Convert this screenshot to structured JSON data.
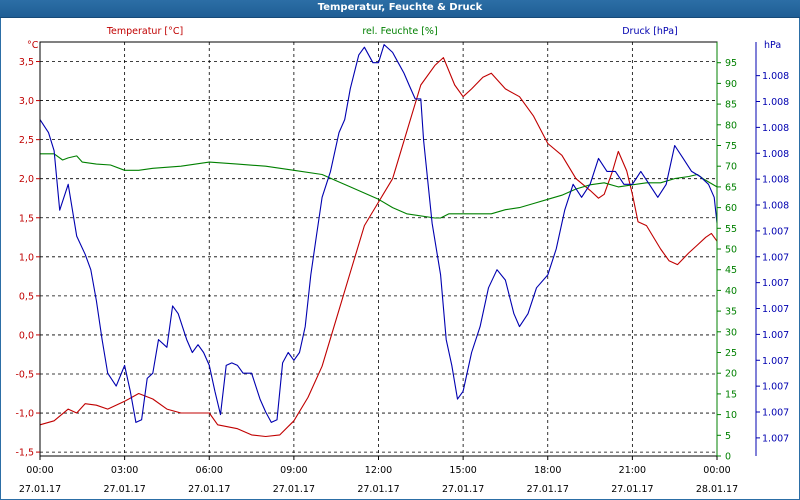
{
  "window": {
    "title": "Temperatur, Feuchte & Druck"
  },
  "chart_data": {
    "type": "line",
    "title": "Temperatur, Feuchte & Druck",
    "grid": true,
    "colors": {
      "temperature": "#c00000",
      "humidity": "#008000",
      "pressure": "#0000b0",
      "grid": "#000000",
      "frame": "#2c6ea6"
    },
    "x_axis": {
      "range_hours": [
        0,
        24
      ],
      "ticks": [
        {
          "time": "00:00",
          "date": "27.01.17"
        },
        {
          "time": "03:00",
          "date": "27.01.17"
        },
        {
          "time": "06:00",
          "date": "27.01.17"
        },
        {
          "time": "09:00",
          "date": "27.01.17"
        },
        {
          "time": "12:00",
          "date": "27.01.17"
        },
        {
          "time": "15:00",
          "date": "27.01.17"
        },
        {
          "time": "18:00",
          "date": "27.01.17"
        },
        {
          "time": "21:00",
          "date": "27.01.17"
        },
        {
          "time": "00:00",
          "date": "28.01.17"
        }
      ]
    },
    "axes": {
      "temperature": {
        "label": "Temperatur [°C]",
        "unit": "°C",
        "range": [
          -1.55,
          3.75
        ],
        "ticks": [
          "3,5",
          "3,0",
          "2,5",
          "2,0",
          "1,5",
          "1,0",
          "0,5",
          "0,0",
          "-0,5",
          "-1,0",
          "-1,5"
        ],
        "tick_values": [
          3.5,
          3.0,
          2.5,
          2.0,
          1.5,
          1.0,
          0.5,
          0.0,
          -0.5,
          -1.0,
          -1.5
        ]
      },
      "humidity": {
        "label": "rel. Feuchte [%]",
        "unit": "%",
        "range": [
          0,
          100
        ],
        "ticks": [
          "95",
          "90",
          "85",
          "80",
          "75",
          "70",
          "65",
          "60",
          "55",
          "50",
          "45",
          "40",
          "35",
          "30",
          "25",
          "20",
          "15",
          "10",
          "5",
          "0"
        ],
        "tick_values": [
          95,
          90,
          85,
          80,
          75,
          70,
          65,
          60,
          55,
          50,
          45,
          40,
          35,
          30,
          25,
          20,
          15,
          10,
          5,
          0
        ]
      },
      "pressure": {
        "label": "Druck [hPa]",
        "unit": "hPa",
        "range": [
          0,
          16
        ],
        "ticks": [
          "1.008",
          "1.008",
          "1.008",
          "1.008",
          "1.008",
          "1.008",
          "1.007",
          "1.007",
          "1.007",
          "1.007",
          "1.007",
          "1.007",
          "1.007",
          "1.007",
          "1.007"
        ],
        "tick_values": [
          14.7,
          13.7,
          12.7,
          11.7,
          10.7,
          9.7,
          8.7,
          7.7,
          6.7,
          5.7,
          4.7,
          3.7,
          2.7,
          1.7,
          0.7
        ]
      }
    },
    "series": [
      {
        "name": "Temperatur [°C]",
        "axis": "temperature",
        "points": [
          [
            0,
            -1.15
          ],
          [
            0.5,
            -1.1
          ],
          [
            1,
            -0.95
          ],
          [
            1.3,
            -1.0
          ],
          [
            1.6,
            -0.88
          ],
          [
            2,
            -0.9
          ],
          [
            2.4,
            -0.95
          ],
          [
            3,
            -0.85
          ],
          [
            3.5,
            -0.75
          ],
          [
            4,
            -0.82
          ],
          [
            4.5,
            -0.95
          ],
          [
            5,
            -1.0
          ],
          [
            6,
            -1.0
          ],
          [
            6.3,
            -1.15
          ],
          [
            7,
            -1.2
          ],
          [
            7.5,
            -1.28
          ],
          [
            8,
            -1.3
          ],
          [
            8.5,
            -1.28
          ],
          [
            9,
            -1.1
          ],
          [
            9.5,
            -0.8
          ],
          [
            10,
            -0.4
          ],
          [
            10.5,
            0.2
          ],
          [
            11,
            0.8
          ],
          [
            11.5,
            1.4
          ],
          [
            12,
            1.7
          ],
          [
            12.5,
            2.0
          ],
          [
            13,
            2.6
          ],
          [
            13.5,
            3.2
          ],
          [
            14,
            3.45
          ],
          [
            14.3,
            3.55
          ],
          [
            14.7,
            3.2
          ],
          [
            15,
            3.05
          ],
          [
            15.3,
            3.15
          ],
          [
            15.7,
            3.3
          ],
          [
            16,
            3.35
          ],
          [
            16.5,
            3.15
          ],
          [
            17,
            3.05
          ],
          [
            17.5,
            2.8
          ],
          [
            18,
            2.45
          ],
          [
            18.5,
            2.3
          ],
          [
            19,
            2.0
          ],
          [
            19.5,
            1.85
          ],
          [
            19.8,
            1.75
          ],
          [
            20,
            1.8
          ],
          [
            20.3,
            2.1
          ],
          [
            20.5,
            2.35
          ],
          [
            20.8,
            2.1
          ],
          [
            21,
            1.8
          ],
          [
            21.2,
            1.45
          ],
          [
            21.5,
            1.4
          ],
          [
            22,
            1.1
          ],
          [
            22.3,
            0.95
          ],
          [
            22.6,
            0.9
          ],
          [
            23,
            1.05
          ],
          [
            23.3,
            1.15
          ],
          [
            23.6,
            1.25
          ],
          [
            23.8,
            1.3
          ],
          [
            24,
            1.2
          ]
        ]
      },
      {
        "name": "rel. Feuchte [%]",
        "axis": "humidity",
        "points": [
          [
            0,
            73
          ],
          [
            0.5,
            73
          ],
          [
            0.8,
            71.5
          ],
          [
            1,
            72
          ],
          [
            1.3,
            72.5
          ],
          [
            1.5,
            71
          ],
          [
            2,
            70.5
          ],
          [
            2.5,
            70.3
          ],
          [
            3,
            69
          ],
          [
            3.5,
            69
          ],
          [
            4,
            69.5
          ],
          [
            5,
            70
          ],
          [
            6,
            71
          ],
          [
            7,
            70.5
          ],
          [
            8,
            70
          ],
          [
            9,
            69
          ],
          [
            10,
            68
          ],
          [
            10.5,
            66.5
          ],
          [
            11,
            65
          ],
          [
            12,
            62
          ],
          [
            12.5,
            60
          ],
          [
            13,
            58.5
          ],
          [
            14,
            57.5
          ],
          [
            14.2,
            57.5
          ],
          [
            14.5,
            58.5
          ],
          [
            15,
            58.5
          ],
          [
            16,
            58.5
          ],
          [
            16.5,
            59.5
          ],
          [
            17,
            60
          ],
          [
            17.5,
            61
          ],
          [
            18,
            62
          ],
          [
            18.5,
            63
          ],
          [
            19,
            64.5
          ],
          [
            19.5,
            65.5
          ],
          [
            20,
            66
          ],
          [
            20.5,
            65
          ],
          [
            21,
            65.5
          ],
          [
            21.5,
            66
          ],
          [
            22,
            66
          ],
          [
            22.5,
            67
          ],
          [
            23,
            67.5
          ],
          [
            23.3,
            68
          ],
          [
            23.5,
            67
          ],
          [
            24,
            65
          ]
        ]
      },
      {
        "name": "Druck [hPa]",
        "axis": "pressure",
        "points": [
          [
            0,
            13
          ],
          [
            0.3,
            12.5
          ],
          [
            0.5,
            11.8
          ],
          [
            0.7,
            9.5
          ],
          [
            1,
            10.5
          ],
          [
            1.3,
            8.5
          ],
          [
            1.6,
            7.8
          ],
          [
            1.8,
            7.2
          ],
          [
            2,
            6
          ],
          [
            2.2,
            4.5
          ],
          [
            2.4,
            3.2
          ],
          [
            2.7,
            2.7
          ],
          [
            3,
            3.5
          ],
          [
            3.2,
            2.5
          ],
          [
            3.4,
            1.3
          ],
          [
            3.6,
            1.4
          ],
          [
            3.8,
            3.0
          ],
          [
            4.0,
            3.2
          ],
          [
            4.2,
            4.5
          ],
          [
            4.5,
            4.2
          ],
          [
            4.7,
            5.8
          ],
          [
            4.9,
            5.5
          ],
          [
            5.2,
            4.5
          ],
          [
            5.4,
            4.0
          ],
          [
            5.6,
            4.3
          ],
          [
            5.8,
            4.0
          ],
          [
            6,
            3.5
          ],
          [
            6.2,
            2.5
          ],
          [
            6.4,
            1.6
          ],
          [
            6.6,
            3.5
          ],
          [
            6.8,
            3.6
          ],
          [
            7,
            3.5
          ],
          [
            7.2,
            3.2
          ],
          [
            7.5,
            3.2
          ],
          [
            7.8,
            2.2
          ],
          [
            8,
            1.7
          ],
          [
            8.2,
            1.3
          ],
          [
            8.4,
            1.4
          ],
          [
            8.6,
            3.6
          ],
          [
            8.8,
            4.0
          ],
          [
            9,
            3.7
          ],
          [
            9.2,
            4.0
          ],
          [
            9.4,
            5.0
          ],
          [
            9.6,
            7.0
          ],
          [
            9.8,
            8.5
          ],
          [
            10,
            10.0
          ],
          [
            10.3,
            11.0
          ],
          [
            10.6,
            12.5
          ],
          [
            10.8,
            13.0
          ],
          [
            11,
            14.2
          ],
          [
            11.3,
            15.5
          ],
          [
            11.5,
            15.8
          ],
          [
            11.8,
            15.2
          ],
          [
            12,
            15.2
          ],
          [
            12.2,
            15.9
          ],
          [
            12.5,
            15.6
          ],
          [
            12.7,
            15.2
          ],
          [
            12.9,
            14.8
          ],
          [
            13.1,
            14.3
          ],
          [
            13.3,
            13.8
          ],
          [
            13.5,
            13.8
          ],
          [
            13.6,
            12.2
          ],
          [
            13.9,
            9.0
          ],
          [
            14.2,
            7.0
          ],
          [
            14.4,
            4.5
          ],
          [
            14.6,
            3.5
          ],
          [
            14.8,
            2.2
          ],
          [
            15.0,
            2.5
          ],
          [
            15.3,
            4.0
          ],
          [
            15.6,
            5.0
          ],
          [
            15.9,
            6.5
          ],
          [
            16.2,
            7.2
          ],
          [
            16.5,
            6.8
          ],
          [
            16.8,
            5.5
          ],
          [
            17,
            5.0
          ],
          [
            17.3,
            5.5
          ],
          [
            17.6,
            6.5
          ],
          [
            18,
            7.0
          ],
          [
            18.3,
            8.0
          ],
          [
            18.6,
            9.5
          ],
          [
            18.9,
            10.5
          ],
          [
            19.2,
            10.0
          ],
          [
            19.5,
            10.5
          ],
          [
            19.8,
            11.5
          ],
          [
            20.1,
            11.0
          ],
          [
            20.4,
            11.0
          ],
          [
            20.7,
            10.5
          ],
          [
            21,
            10.5
          ],
          [
            21.3,
            11.0
          ],
          [
            21.6,
            10.5
          ],
          [
            21.9,
            10.0
          ],
          [
            22.2,
            10.5
          ],
          [
            22.5,
            12.0
          ],
          [
            22.8,
            11.5
          ],
          [
            23.1,
            11.0
          ],
          [
            23.4,
            10.8
          ],
          [
            23.7,
            10.5
          ],
          [
            23.9,
            10.0
          ],
          [
            24,
            9.0
          ]
        ]
      }
    ]
  }
}
